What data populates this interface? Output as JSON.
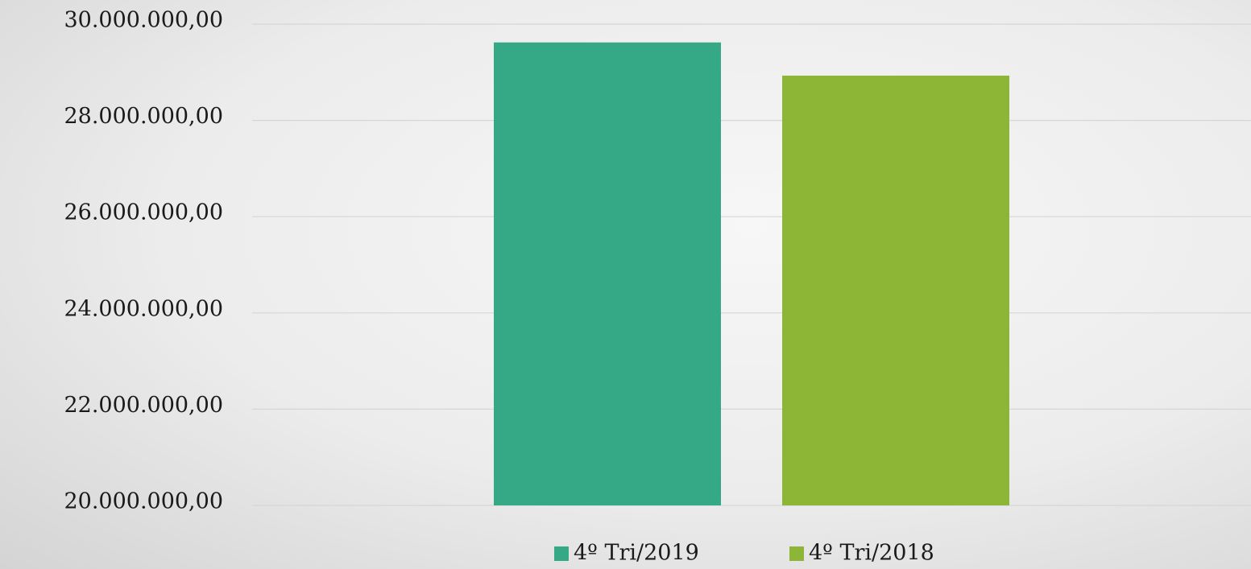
{
  "chart_data": {
    "type": "bar",
    "categories": [
      null
    ],
    "series": [
      {
        "name": "4º Tri/2019",
        "color": "#35a886",
        "values": [
          29620000
        ]
      },
      {
        "name": "4º Tri/2018",
        "color": "#8db536",
        "values": [
          28930000
        ]
      }
    ],
    "ylim": [
      20000000,
      30000000
    ],
    "yticks": [
      {
        "value": 20000000,
        "label": "20.000.000,00"
      },
      {
        "value": 22000000,
        "label": "22.000.000,00"
      },
      {
        "value": 24000000,
        "label": "24.000.000,00"
      },
      {
        "value": 26000000,
        "label": "26.000.000,00"
      },
      {
        "value": 28000000,
        "label": "28.000.000,00"
      },
      {
        "value": 30000000,
        "label": "30.000.000,00"
      }
    ],
    "grid": true,
    "legend": "bottom"
  }
}
